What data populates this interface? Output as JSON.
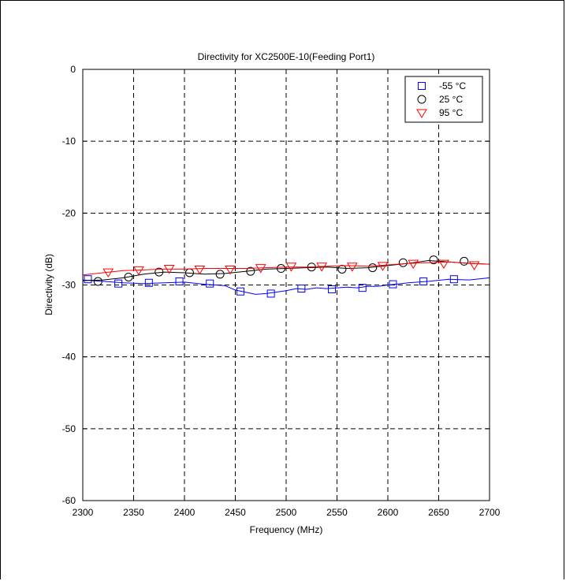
{
  "chart_data": {
    "type": "line",
    "title": "Directivity for XC2500E-10(Feeding Port1)",
    "xlabel": "Frequency (MHz)",
    "ylabel": "Directivity (dB)",
    "xlim": [
      2300,
      2700
    ],
    "ylim": [
      -60,
      0
    ],
    "xticks": [
      2300,
      2350,
      2400,
      2450,
      2500,
      2550,
      2600,
      2650,
      2700
    ],
    "yticks": [
      0,
      -10,
      -20,
      -30,
      -40,
      -50,
      -60
    ],
    "grid": true,
    "legend_position": "top-right",
    "series": [
      {
        "name": "-55 °C",
        "color": "#0000ff",
        "marker": "square",
        "line_x": [
          2300,
          2320,
          2340,
          2360,
          2380,
          2400,
          2420,
          2440,
          2450,
          2460,
          2470,
          2480,
          2490,
          2500,
          2510,
          2520,
          2530,
          2540,
          2550,
          2560,
          2570,
          2580,
          2590,
          2600,
          2620,
          2640,
          2660,
          2680,
          2700
        ],
        "line_y": [
          -29.3,
          -29.5,
          -29.7,
          -29.8,
          -29.7,
          -29.6,
          -29.9,
          -30.1,
          -30.7,
          -31.0,
          -31.3,
          -31.2,
          -31.0,
          -30.8,
          -30.5,
          -30.6,
          -30.4,
          -30.5,
          -30.4,
          -30.3,
          -30.4,
          -30.2,
          -30.2,
          -30.0,
          -29.7,
          -29.5,
          -29.2,
          -29.3,
          -29.0
        ],
        "marker_x": [
          2305,
          2335,
          2365,
          2395,
          2425,
          2455,
          2485,
          2515,
          2545,
          2575,
          2605,
          2635,
          2665
        ],
        "marker_y": [
          -29.2,
          -29.8,
          -29.7,
          -29.5,
          -29.8,
          -30.9,
          -31.2,
          -30.5,
          -30.6,
          -30.4,
          -29.9,
          -29.5,
          -29.2
        ]
      },
      {
        "name": "25 °C",
        "color": "#000000",
        "marker": "circle",
        "line_x": [
          2300,
          2320,
          2340,
          2360,
          2380,
          2400,
          2420,
          2440,
          2460,
          2480,
          2500,
          2520,
          2540,
          2560,
          2580,
          2600,
          2620,
          2640,
          2660,
          2680,
          2700
        ],
        "line_y": [
          -29.4,
          -29.3,
          -29.0,
          -28.5,
          -28.2,
          -28.3,
          -28.5,
          -28.4,
          -28.1,
          -27.8,
          -27.7,
          -27.6,
          -27.5,
          -27.7,
          -27.6,
          -27.3,
          -27.0,
          -26.6,
          -26.8,
          -27.0,
          -27.1
        ],
        "marker_x": [
          2315,
          2345,
          2375,
          2405,
          2435,
          2465,
          2495,
          2525,
          2555,
          2585,
          2615,
          2645,
          2675
        ],
        "marker_y": [
          -29.5,
          -28.9,
          -28.2,
          -28.3,
          -28.5,
          -28.1,
          -27.7,
          -27.5,
          -27.8,
          -27.6,
          -26.9,
          -26.5,
          -26.7
        ]
      },
      {
        "name": "95 °C",
        "color": "#ff0000",
        "marker": "triangle-down",
        "line_x": [
          2300,
          2320,
          2340,
          2360,
          2380,
          2400,
          2420,
          2440,
          2460,
          2480,
          2500,
          2520,
          2540,
          2560,
          2580,
          2600,
          2620,
          2640,
          2660,
          2680,
          2700
        ],
        "line_y": [
          -28.6,
          -28.3,
          -28.0,
          -27.9,
          -27.8,
          -27.8,
          -27.7,
          -27.7,
          -27.7,
          -27.6,
          -27.5,
          -27.5,
          -27.4,
          -27.3,
          -27.4,
          -27.2,
          -27.0,
          -26.9,
          -26.8,
          -27.0,
          -27.1
        ],
        "marker_x": [
          2325,
          2355,
          2385,
          2415,
          2445,
          2475,
          2505,
          2535,
          2565,
          2595,
          2625,
          2655,
          2685
        ],
        "marker_y": [
          -28.2,
          -27.9,
          -27.7,
          -27.8,
          -27.8,
          -27.6,
          -27.4,
          -27.4,
          -27.4,
          -27.3,
          -27.0,
          -27.0,
          -27.2
        ]
      }
    ]
  }
}
